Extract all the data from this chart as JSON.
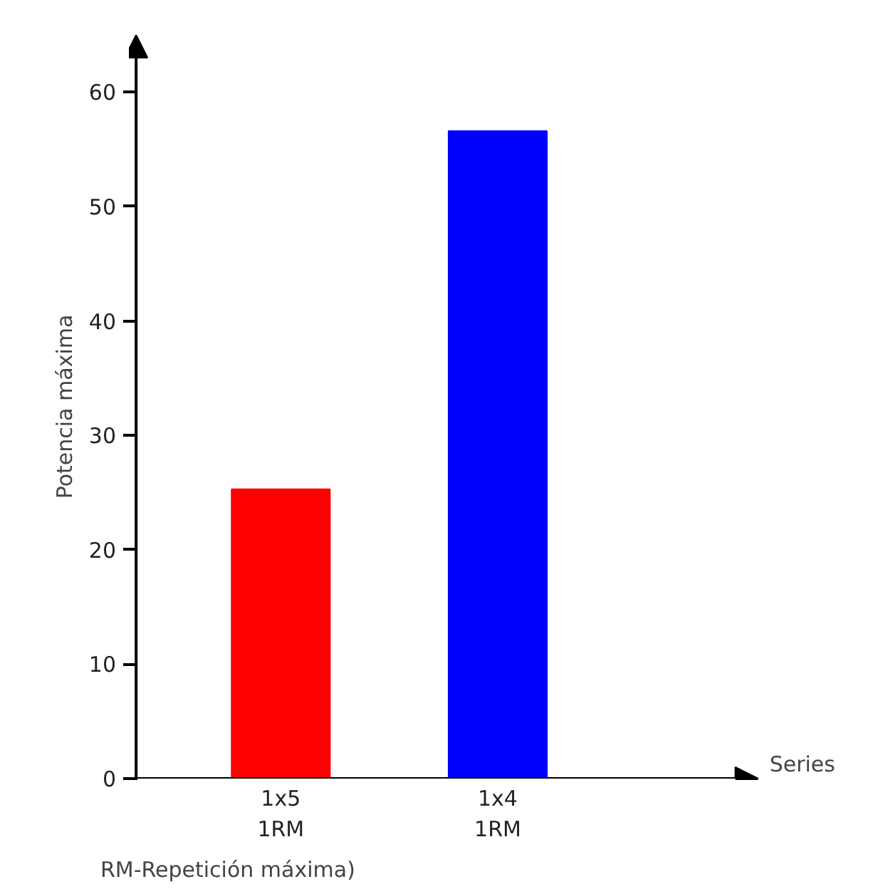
{
  "chart_data": {
    "type": "bar",
    "categories": [
      "1x5\n1RM",
      "1x4\n1RM"
    ],
    "values": [
      25.3,
      56.6
    ],
    "colors": [
      "#ff0000",
      "#0000ff"
    ],
    "xlabel": "Series",
    "ylabel": "Potencia máxima",
    "ylim": [
      0,
      65
    ],
    "yticks": [
      0,
      10,
      20,
      30,
      40,
      50,
      60
    ],
    "grid": false,
    "legend": false,
    "annotations": [
      "RM-Repetición máxima)"
    ]
  }
}
